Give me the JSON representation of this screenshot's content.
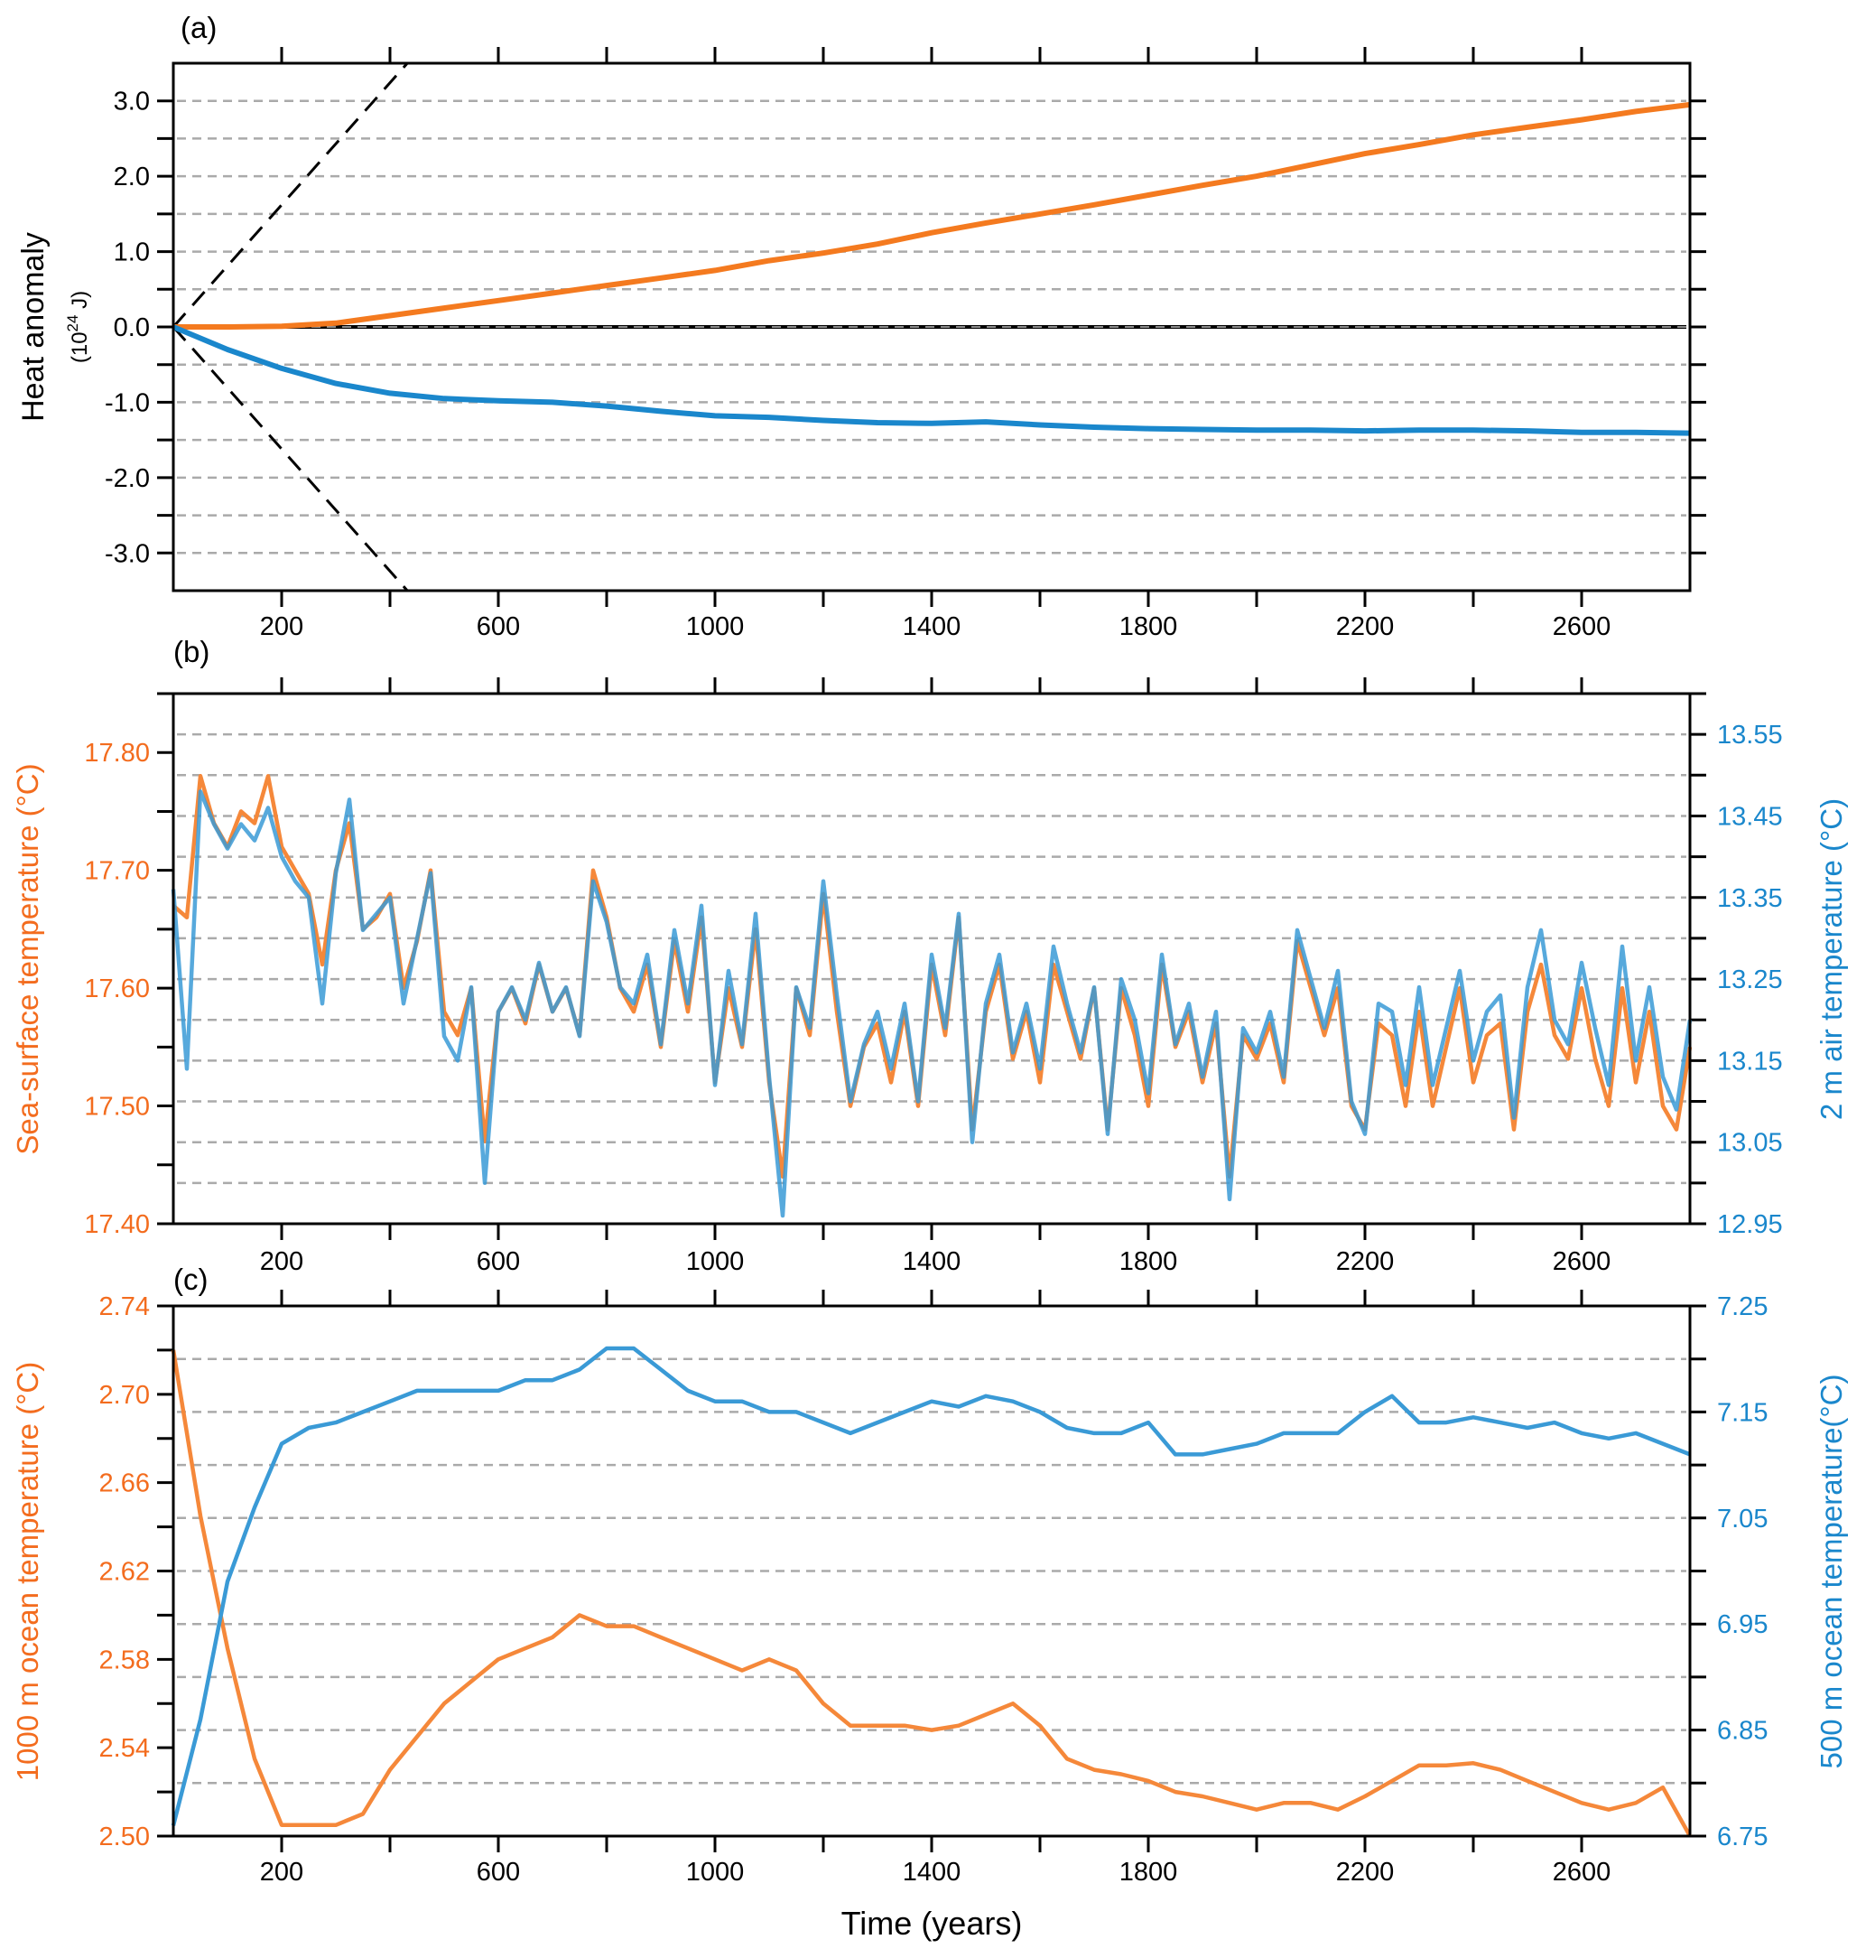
{
  "colors": {
    "orange": "#f47a1f",
    "blue": "#1a87cc",
    "orange_light": "#f5883a",
    "blue_light": "#3a9ad6",
    "grid": "#aaaaaa",
    "axis": "#000000"
  },
  "x_axis": {
    "label": "Time (years)",
    "range": [
      0,
      2800
    ],
    "ticks": [
      200,
      400,
      600,
      800,
      1000,
      1200,
      1400,
      1600,
      1800,
      2000,
      2200,
      2400,
      2600
    ],
    "tick_labels": [
      "200",
      "600",
      "1000",
      "1400",
      "1800",
      "2200",
      "2600"
    ],
    "labeled_ticks": [
      200,
      600,
      1000,
      1400,
      1800,
      2200,
      2600
    ]
  },
  "chart_data": [
    {
      "panel": "(a)",
      "type": "line",
      "ylabel": "Heat anomaly",
      "ylabel_unit": "(10",
      "ylabel_exp": "24",
      "ylabel_unit_end": " J)",
      "ylim": [
        -3.5,
        3.5
      ],
      "y_ticks": [
        -3.0,
        -2.0,
        -1.0,
        0.0,
        1.0,
        2.0,
        3.0
      ],
      "y_tick_labels": [
        "-3.0",
        "-2.0",
        "-1.0",
        "0.0",
        "1.0",
        "2.0",
        "3.0"
      ],
      "grid_step": 0.5,
      "x_step": 100,
      "series": [
        {
          "name": "orange",
          "values": [
            0,
            0,
            0.01,
            0.05,
            0.15,
            0.25,
            0.35,
            0.45,
            0.55,
            0.65,
            0.75,
            0.88,
            0.98,
            1.1,
            1.25,
            1.38,
            1.5,
            1.62,
            1.75,
            1.88,
            2.0,
            2.15,
            2.3,
            2.42,
            2.55,
            2.65,
            2.75,
            2.86,
            2.95
          ]
        },
        {
          "name": "blue",
          "values": [
            0,
            -0.3,
            -0.55,
            -0.75,
            -0.88,
            -0.95,
            -0.98,
            -1.0,
            -1.05,
            -1.12,
            -1.18,
            -1.2,
            -1.24,
            -1.27,
            -1.28,
            -1.26,
            -1.3,
            -1.33,
            -1.35,
            -1.36,
            -1.37,
            -1.37,
            -1.38,
            -1.37,
            -1.37,
            -1.38,
            -1.4,
            -1.4,
            -1.41
          ]
        }
      ],
      "reference_lines": [
        {
          "name": "upper-dashed",
          "from": [
            0,
            0
          ],
          "to": [
            432,
            3.5
          ]
        },
        {
          "name": "lower-dashed",
          "from": [
            0,
            0
          ],
          "to": [
            432,
            -3.5
          ]
        }
      ]
    },
    {
      "panel": "(b)",
      "type": "line",
      "ylabel_left": "Sea-surface temperature (°C)",
      "ylabel_right": "2 m air temperature (°C)",
      "ylim_left": [
        17.4,
        17.85
      ],
      "ylim_right": [
        12.95,
        13.6
      ],
      "y_ticks_left": [
        17.4,
        17.5,
        17.6,
        17.7,
        17.8
      ],
      "y_tick_labels_left": [
        "17.40",
        "17.50",
        "17.60",
        "17.70",
        "17.80"
      ],
      "y_ticks_right": [
        12.95,
        13.05,
        13.15,
        13.25,
        13.35,
        13.45,
        13.55
      ],
      "y_tick_labels_right": [
        "12.95",
        "13.05",
        "13.15",
        "13.25",
        "13.35",
        "13.45",
        "13.55"
      ],
      "x_step": 25,
      "series": [
        {
          "name": "Sea-surface temperature",
          "axis": "left",
          "values": [
            17.67,
            17.66,
            17.78,
            17.74,
            17.72,
            17.75,
            17.74,
            17.78,
            17.72,
            17.7,
            17.68,
            17.62,
            17.7,
            17.74,
            17.65,
            17.66,
            17.68,
            17.6,
            17.64,
            17.7,
            17.58,
            17.56,
            17.6,
            17.47,
            17.58,
            17.6,
            17.57,
            17.62,
            17.58,
            17.6,
            17.56,
            17.7,
            17.66,
            17.6,
            17.58,
            17.62,
            17.55,
            17.64,
            17.58,
            17.66,
            17.52,
            17.6,
            17.55,
            17.65,
            17.52,
            17.44,
            17.6,
            17.56,
            17.68,
            17.58,
            17.5,
            17.55,
            17.57,
            17.52,
            17.58,
            17.5,
            17.62,
            17.56,
            17.66,
            17.48,
            17.58,
            17.62,
            17.54,
            17.58,
            17.52,
            17.62,
            17.58,
            17.54,
            17.6,
            17.48,
            17.6,
            17.56,
            17.5,
            17.62,
            17.55,
            17.58,
            17.52,
            17.57,
            17.44,
            17.56,
            17.54,
            17.57,
            17.52,
            17.64,
            17.6,
            17.56,
            17.6,
            17.5,
            17.48,
            17.57,
            17.56,
            17.5,
            17.58,
            17.5,
            17.55,
            17.6,
            17.52,
            17.56,
            17.57,
            17.48,
            17.58,
            17.62,
            17.56,
            17.54,
            17.6,
            17.54,
            17.5,
            17.6,
            17.52,
            17.58,
            17.5,
            17.48,
            17.55
          ]
        },
        {
          "name": "2 m air temperature",
          "axis": "right",
          "values": [
            13.36,
            13.14,
            13.48,
            13.44,
            13.41,
            13.44,
            13.42,
            13.46,
            13.4,
            13.37,
            13.35,
            13.22,
            13.38,
            13.47,
            13.31,
            13.33,
            13.35,
            13.22,
            13.3,
            13.38,
            13.18,
            13.15,
            13.24,
            13.0,
            13.21,
            13.24,
            13.2,
            13.27,
            13.21,
            13.24,
            13.18,
            13.37,
            13.32,
            13.24,
            13.22,
            13.28,
            13.17,
            13.31,
            13.22,
            13.34,
            13.12,
            13.26,
            13.17,
            13.33,
            13.13,
            12.96,
            13.24,
            13.19,
            13.37,
            13.23,
            13.1,
            13.17,
            13.21,
            13.14,
            13.22,
            13.1,
            13.28,
            13.19,
            13.33,
            13.05,
            13.22,
            13.28,
            13.16,
            13.22,
            13.14,
            13.29,
            13.22,
            13.16,
            13.24,
            13.06,
            13.25,
            13.2,
            13.11,
            13.28,
            13.17,
            13.22,
            13.13,
            13.21,
            12.98,
            13.19,
            13.16,
            13.21,
            13.13,
            13.31,
            13.25,
            13.19,
            13.26,
            13.1,
            13.06,
            13.22,
            13.21,
            13.12,
            13.24,
            13.12,
            13.19,
            13.26,
            13.15,
            13.21,
            13.23,
            13.08,
            13.24,
            13.31,
            13.2,
            13.17,
            13.27,
            13.19,
            13.12,
            13.29,
            13.15,
            13.24,
            13.13,
            13.09,
            13.2
          ]
        }
      ]
    },
    {
      "panel": "(c)",
      "type": "line",
      "ylabel_left": "1000 m ocean temperature (°C)",
      "ylabel_right": "500 m ocean temperature(°C)",
      "ylim_left": [
        2.5,
        2.74
      ],
      "ylim_right": [
        6.75,
        7.25
      ],
      "y_ticks_left": [
        2.5,
        2.54,
        2.58,
        2.62,
        2.66,
        2.7,
        2.74
      ],
      "y_tick_labels_left": [
        "2.50",
        "2.54",
        "2.58",
        "2.62",
        "2.66",
        "2.70",
        "2.74"
      ],
      "y_ticks_right": [
        6.75,
        6.85,
        6.95,
        7.05,
        7.15,
        7.25
      ],
      "y_tick_labels_right": [
        "6.75",
        "6.85",
        "6.95",
        "7.05",
        "7.15",
        "7.25"
      ],
      "x_step": 50,
      "series": [
        {
          "name": "1000 m ocean temperature",
          "axis": "left",
          "values": [
            2.72,
            2.645,
            2.585,
            2.535,
            2.505,
            2.505,
            2.505,
            2.51,
            2.53,
            2.545,
            2.56,
            2.57,
            2.58,
            2.585,
            2.59,
            2.6,
            2.595,
            2.595,
            2.59,
            2.585,
            2.58,
            2.575,
            2.58,
            2.575,
            2.56,
            2.55,
            2.55,
            2.55,
            2.548,
            2.55,
            2.555,
            2.56,
            2.55,
            2.535,
            2.53,
            2.528,
            2.525,
            2.52,
            2.518,
            2.515,
            2.512,
            2.515,
            2.515,
            2.512,
            2.518,
            2.525,
            2.532,
            2.532,
            2.533,
            2.53,
            2.525,
            2.52,
            2.515,
            2.512,
            2.515,
            2.522,
            2.5
          ]
        },
        {
          "name": "500 m ocean temperature",
          "axis": "right",
          "values": [
            6.76,
            6.86,
            6.99,
            7.06,
            7.12,
            7.135,
            7.14,
            7.15,
            7.16,
            7.17,
            7.17,
            7.17,
            7.17,
            7.18,
            7.18,
            7.19,
            7.21,
            7.21,
            7.19,
            7.17,
            7.16,
            7.16,
            7.15,
            7.15,
            7.14,
            7.13,
            7.14,
            7.15,
            7.16,
            7.155,
            7.165,
            7.16,
            7.15,
            7.135,
            7.13,
            7.13,
            7.14,
            7.11,
            7.11,
            7.115,
            7.12,
            7.13,
            7.13,
            7.13,
            7.15,
            7.165,
            7.14,
            7.14,
            7.145,
            7.14,
            7.135,
            7.14,
            7.13,
            7.125,
            7.13,
            7.12,
            7.11
          ]
        }
      ]
    }
  ]
}
